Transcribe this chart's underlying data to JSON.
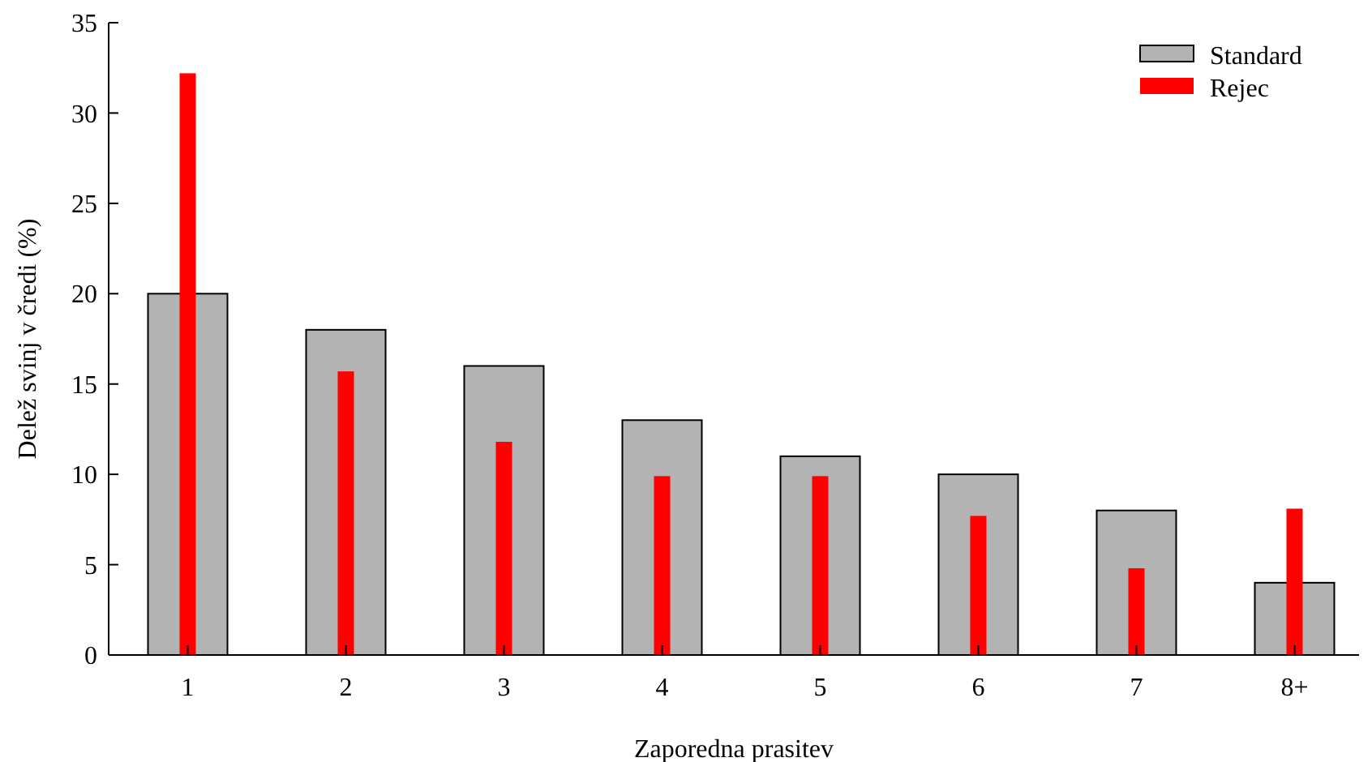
{
  "chart_data": {
    "type": "bar",
    "xlabel": "Zaporedna prasitev",
    "ylabel": "Delež svinj v čredi (%)",
    "categories": [
      "1",
      "2",
      "3",
      "4",
      "5",
      "6",
      "7",
      "8+"
    ],
    "series": [
      {
        "name": "Standard",
        "color": "#b3b3b3",
        "values": [
          20,
          18,
          16,
          13,
          11,
          10,
          8,
          4
        ]
      },
      {
        "name": "Rejec",
        "color": "#ff0000",
        "values": [
          32.2,
          15.7,
          11.8,
          9.9,
          9.9,
          7.7,
          4.8,
          8.1
        ]
      }
    ],
    "ylim": [
      0,
      35
    ],
    "yticks": [
      0,
      5,
      10,
      15,
      20,
      25,
      30,
      35
    ],
    "grid": false,
    "legend": "top right"
  }
}
